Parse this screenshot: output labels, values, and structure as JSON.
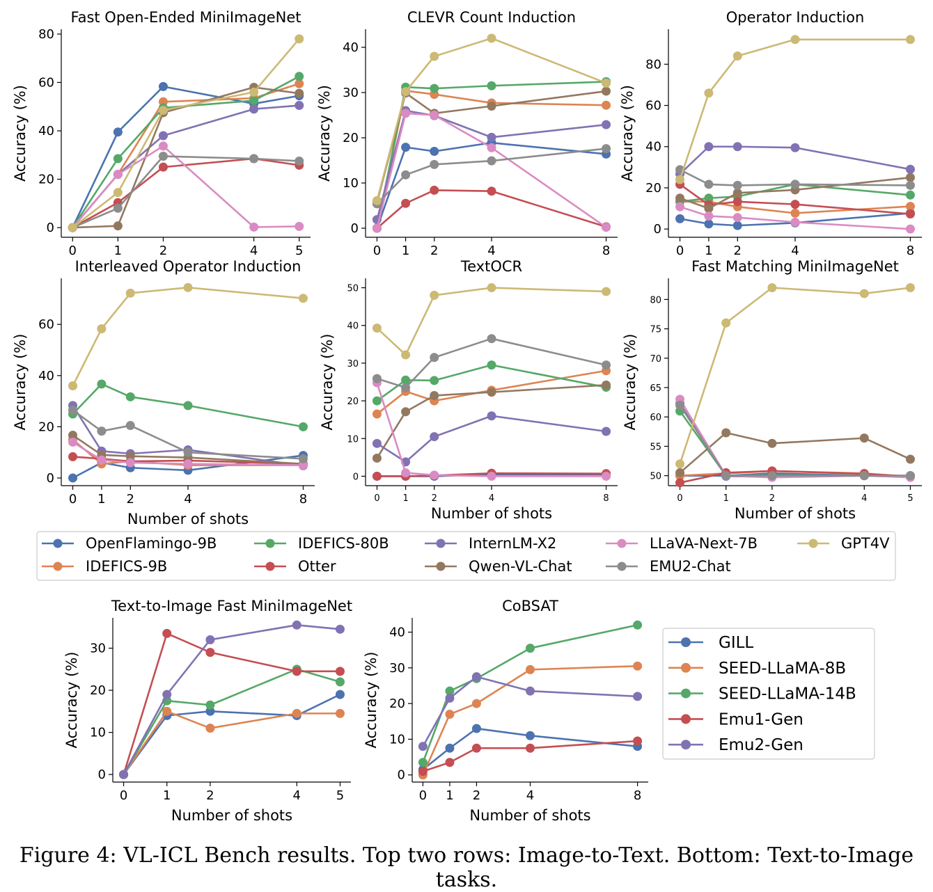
{
  "colors": {
    "OpenFlamingo-9B": "#4c72b0",
    "IDEFICS-9B": "#dd8452",
    "IDEFICS-80B": "#55a868",
    "Otter": "#c44e52",
    "InternLM-X2": "#8172b3",
    "Qwen-VL-Chat": "#937860",
    "LLaVA-Next-7B": "#da8bc3",
    "EMU2-Chat": "#8c8c8c",
    "GPT4V": "#ccb974",
    "GILL": "#4c72b0",
    "SEED-LLaMA-8B": "#dd8452",
    "SEED-LLaMA-14B": "#55a868",
    "Emu1-Gen": "#c44e52",
    "Emu2-Gen": "#8172b3"
  },
  "legend_top": {
    "items": [
      "OpenFlamingo-9B",
      "IDEFICS-80B",
      "InternLM-X2",
      "LLaVA-Next-7B",
      "GPT4V",
      "IDEFICS-9B",
      "Otter",
      "Qwen-VL-Chat",
      "EMU2-Chat"
    ]
  },
  "legend_bottom": {
    "items": [
      "GILL",
      "SEED-LLaMA-8B",
      "SEED-LLaMA-14B",
      "Emu1-Gen",
      "Emu2-Gen"
    ]
  },
  "caption": "Figure 4: VL-ICL Bench results. Top two rows: Image-to-Text. Bottom: Text-to-Image tasks.",
  "chart_data": [
    {
      "type": "line",
      "title": "Fast Open-Ended MiniImageNet",
      "xlabel": "",
      "ylabel": "Accuracy (%)",
      "x": [
        0,
        1,
        2,
        4,
        5
      ],
      "xticks": [
        0,
        1,
        2,
        4,
        5
      ],
      "xlim": [
        -0.25,
        5.25
      ],
      "yticks": [
        0,
        20,
        40,
        60,
        80
      ],
      "ylim": [
        -4,
        82
      ],
      "series": [
        {
          "name": "OpenFlamingo-9B",
          "values": [
            0,
            39.5,
            58.3,
            51.2,
            54.5
          ]
        },
        {
          "name": "IDEFICS-9B",
          "values": [
            0,
            22,
            52,
            53.5,
            59.5
          ]
        },
        {
          "name": "IDEFICS-80B",
          "values": [
            0,
            28.5,
            49.5,
            52.5,
            62.5
          ]
        },
        {
          "name": "Otter",
          "values": [
            0,
            10.3,
            25,
            28.5,
            25.8
          ]
        },
        {
          "name": "InternLM-X2",
          "values": [
            0,
            22,
            38,
            49,
            50.5
          ]
        },
        {
          "name": "Qwen-VL-Chat",
          "values": [
            0,
            0.7,
            47.5,
            58,
            55.5
          ]
        },
        {
          "name": "LLaVA-Next-7B",
          "values": [
            0,
            22,
            33.7,
            0.2,
            0.5
          ]
        },
        {
          "name": "EMU2-Chat",
          "values": [
            0,
            8,
            29.5,
            28.5,
            27.5
          ]
        },
        {
          "name": "GPT4V",
          "values": [
            0,
            14.5,
            48.5,
            56,
            78
          ]
        }
      ]
    },
    {
      "type": "line",
      "title": "CLEVR Count Induction",
      "xlabel": "",
      "ylabel": "Accuracy (%)",
      "x": [
        0,
        1,
        2,
        4,
        8
      ],
      "xticks": [
        0,
        1,
        2,
        4,
        8
      ],
      "xlim": [
        -0.4,
        8.4
      ],
      "yticks": [
        0,
        10,
        20,
        30,
        40
      ],
      "ylim": [
        -2,
        44
      ],
      "series": [
        {
          "name": "OpenFlamingo-9B",
          "values": [
            0,
            17.9,
            17,
            18.9,
            16.4
          ]
        },
        {
          "name": "IDEFICS-9B",
          "values": [
            0,
            30.4,
            29.6,
            27.7,
            27.2
          ]
        },
        {
          "name": "IDEFICS-80B",
          "values": [
            0,
            31.2,
            30.9,
            31.5,
            32.4
          ]
        },
        {
          "name": "Otter",
          "values": [
            0,
            5.5,
            8.4,
            8.2,
            0.3
          ]
        },
        {
          "name": "InternLM-X2",
          "values": [
            1.9,
            26,
            24.9,
            20.1,
            22.9
          ]
        },
        {
          "name": "Qwen-VL-Chat",
          "values": [
            5.7,
            29.9,
            25.4,
            27,
            30.3
          ]
        },
        {
          "name": "LLaVA-Next-7B",
          "values": [
            0,
            25.4,
            25,
            17.8,
            0.2
          ]
        },
        {
          "name": "EMU2-Chat",
          "values": [
            5.4,
            11.8,
            14.1,
            14.9,
            17.6
          ]
        },
        {
          "name": "GPT4V",
          "values": [
            6.1,
            30.2,
            38,
            42,
            32.1
          ]
        }
      ]
    },
    {
      "type": "line",
      "title": "Operator Induction",
      "xlabel": "",
      "ylabel": "Accuracy (%)",
      "x": [
        0,
        1,
        2,
        4,
        8
      ],
      "xticks": [
        0,
        1,
        2,
        4,
        8
      ],
      "xlim": [
        -0.4,
        8.4
      ],
      "yticks": [
        0,
        20,
        40,
        60,
        80
      ],
      "ylim": [
        -4,
        97
      ],
      "series": [
        {
          "name": "OpenFlamingo-9B",
          "values": [
            5,
            2.5,
            1.7,
            3,
            7.7
          ]
        },
        {
          "name": "IDEFICS-9B",
          "values": [
            13.3,
            13.3,
            10.8,
            7.7,
            11
          ]
        },
        {
          "name": "IDEFICS-80B",
          "values": [
            13.3,
            15,
            15.8,
            21.7,
            16.5
          ]
        },
        {
          "name": "Otter",
          "values": [
            21.7,
            11.7,
            13.3,
            12,
            7.3
          ]
        },
        {
          "name": "InternLM-X2",
          "values": [
            26.7,
            40,
            40,
            39.5,
            29
          ]
        },
        {
          "name": "Qwen-VL-Chat",
          "values": [
            15,
            10,
            17.5,
            19,
            25
          ]
        },
        {
          "name": "LLaVA-Next-7B",
          "values": [
            10.8,
            6.3,
            5.6,
            3.3,
            0
          ]
        },
        {
          "name": "EMU2-Chat",
          "values": [
            28.8,
            21.7,
            21.2,
            21.7,
            21.2
          ]
        },
        {
          "name": "GPT4V",
          "values": [
            24,
            66,
            84,
            92,
            92
          ]
        }
      ]
    },
    {
      "type": "line",
      "title": "Interleaved Operator Induction",
      "xlabel": "Number of shots",
      "ylabel": "Accuracy (%)",
      "x": [
        0,
        1,
        2,
        4,
        8
      ],
      "xticks": [
        0,
        1,
        2,
        4,
        8
      ],
      "xlim": [
        -0.4,
        8.4
      ],
      "yticks": [
        0,
        20,
        40,
        60
      ],
      "ylim": [
        -3,
        78
      ],
      "series": [
        {
          "name": "OpenFlamingo-9B",
          "values": [
            0,
            6,
            4,
            3,
            8.8
          ]
        },
        {
          "name": "IDEFICS-9B",
          "values": [
            15,
            5.5,
            6.5,
            5,
            5
          ]
        },
        {
          "name": "IDEFICS-80B",
          "values": [
            25,
            36.7,
            31.7,
            28.3,
            20
          ]
        },
        {
          "name": "Otter",
          "values": [
            8.3,
            7.5,
            6.5,
            6.8,
            5.5
          ]
        },
        {
          "name": "InternLM-X2",
          "values": [
            28.3,
            10.5,
            9.5,
            11,
            4.8
          ]
        },
        {
          "name": "Qwen-VL-Chat",
          "values": [
            16.7,
            9,
            8.5,
            8,
            5.5
          ]
        },
        {
          "name": "LLaVA-Next-7B",
          "values": [
            14,
            7,
            6,
            5.5,
            5
          ]
        },
        {
          "name": "EMU2-Chat",
          "values": [
            26.5,
            18.3,
            20.5,
            10,
            7.5
          ]
        },
        {
          "name": "GPT4V",
          "values": [
            36,
            58.3,
            72.2,
            74.4,
            70.2
          ]
        }
      ]
    },
    {
      "type": "line",
      "title": "TextOCR",
      "xlabel": "Number of shots",
      "ylabel": "Accuracy (%)",
      "x": [
        0,
        1,
        2,
        4,
        8
      ],
      "xticks": [
        0,
        1,
        2,
        4,
        8
      ],
      "xlim": [
        -0.4,
        8.4
      ],
      "yticks": [
        0,
        10,
        20,
        30,
        40,
        50
      ],
      "ylim": [
        -2.5,
        52.5
      ],
      "series": [
        {
          "name": "OpenFlamingo-9B",
          "values": [
            0,
            0,
            0,
            0.5,
            0.5
          ]
        },
        {
          "name": "IDEFICS-9B",
          "values": [
            16.5,
            22.5,
            20,
            22.8,
            28
          ]
        },
        {
          "name": "IDEFICS-80B",
          "values": [
            20,
            25.5,
            25.4,
            29.5,
            23.6
          ]
        },
        {
          "name": "Otter",
          "values": [
            0,
            0,
            0.2,
            0.8,
            0.7
          ]
        },
        {
          "name": "InternLM-X2",
          "values": [
            8.7,
            3.8,
            10.5,
            16,
            11.9
          ]
        },
        {
          "name": "Qwen-VL-Chat",
          "values": [
            4.8,
            17.1,
            21.4,
            22.3,
            24.2
          ]
        },
        {
          "name": "LLaVA-Next-7B",
          "values": [
            24.8,
            0.9,
            0.3,
            0,
            0
          ]
        },
        {
          "name": "EMU2-Chat",
          "values": [
            25.9,
            23.5,
            31.5,
            36.5,
            29.5
          ]
        },
        {
          "name": "GPT4V",
          "values": [
            39.3,
            32.2,
            48,
            50,
            49
          ]
        }
      ]
    },
    {
      "type": "line",
      "title": "Fast Matching MiniImageNet",
      "xlabel": "Number of shots",
      "ylabel": "Accuracy (%)",
      "x": [
        0,
        1,
        2,
        4,
        5
      ],
      "xticks": [
        0,
        1,
        2,
        4,
        5
      ],
      "xlim": [
        -0.25,
        5.25
      ],
      "yticks": [
        50,
        55,
        60,
        65,
        70,
        75,
        80
      ],
      "ylim": [
        48.3,
        83.6
      ],
      "series": [
        {
          "name": "OpenFlamingo-9B",
          "values": [
            50,
            50,
            50.4,
            50,
            50
          ]
        },
        {
          "name": "IDEFICS-9B",
          "values": [
            50,
            50.4,
            50.8,
            50.4,
            49.8
          ]
        },
        {
          "name": "IDEFICS-80B",
          "values": [
            61,
            50,
            50.1,
            50,
            50
          ]
        },
        {
          "name": "Otter",
          "values": [
            48.8,
            50.5,
            50.8,
            50.3,
            49.9
          ]
        },
        {
          "name": "InternLM-X2",
          "values": [
            62.3,
            49.9,
            49.8,
            50,
            49.8
          ]
        },
        {
          "name": "Qwen-VL-Chat",
          "values": [
            50.5,
            57.3,
            55.5,
            56.4,
            52.8
          ]
        },
        {
          "name": "LLaVA-Next-7B",
          "values": [
            63,
            50,
            49.7,
            50,
            49.7
          ]
        },
        {
          "name": "EMU2-Chat",
          "values": [
            62,
            50,
            50,
            50,
            50
          ]
        },
        {
          "name": "GPT4V",
          "values": [
            52,
            76,
            82,
            81,
            82
          ]
        }
      ]
    },
    {
      "type": "line",
      "title": "Text-to-Image Fast MiniImageNet",
      "xlabel": "Number of shots",
      "ylabel": "Accuracy (%)",
      "x": [
        0,
        1,
        2,
        4,
        5
      ],
      "xticks": [
        0,
        1,
        2,
        4,
        5
      ],
      "xlim": [
        -0.25,
        5.25
      ],
      "yticks": [
        0,
        10,
        20,
        30
      ],
      "ylim": [
        -1.8,
        37.2
      ],
      "series": [
        {
          "name": "GILL",
          "values": [
            0,
            14,
            15,
            14,
            19
          ]
        },
        {
          "name": "SEED-LLaMA-8B",
          "values": [
            0,
            15,
            11,
            14.5,
            14.5
          ]
        },
        {
          "name": "SEED-LLaMA-14B",
          "values": [
            0,
            17.5,
            16.5,
            25,
            22
          ]
        },
        {
          "name": "Emu1-Gen",
          "values": [
            0,
            33.5,
            29,
            24.5,
            24.5
          ]
        },
        {
          "name": "Emu2-Gen",
          "values": [
            0,
            19,
            32,
            35.5,
            34.5
          ]
        }
      ]
    },
    {
      "type": "line",
      "title": "CoBSAT",
      "xlabel": "Number of shots",
      "ylabel": "Accuracy (%)",
      "x": [
        0,
        1,
        2,
        4,
        8
      ],
      "xticks": [
        0,
        1,
        2,
        4,
        8
      ],
      "xlim": [
        -0.4,
        8.4
      ],
      "yticks": [
        0,
        10,
        20,
        30,
        40
      ],
      "ylim": [
        -2,
        44
      ],
      "series": [
        {
          "name": "GILL",
          "values": [
            1.5,
            7.5,
            13,
            11,
            8
          ]
        },
        {
          "name": "SEED-LLaMA-8B",
          "values": [
            0,
            17,
            20,
            29.5,
            30.5
          ]
        },
        {
          "name": "SEED-LLaMA-14B",
          "values": [
            3.5,
            23.5,
            27,
            35.5,
            42
          ]
        },
        {
          "name": "Emu1-Gen",
          "values": [
            1,
            3.5,
            7.5,
            7.5,
            9.5
          ]
        },
        {
          "name": "Emu2-Gen",
          "values": [
            8,
            21.5,
            27.5,
            23.5,
            22
          ]
        }
      ]
    }
  ]
}
